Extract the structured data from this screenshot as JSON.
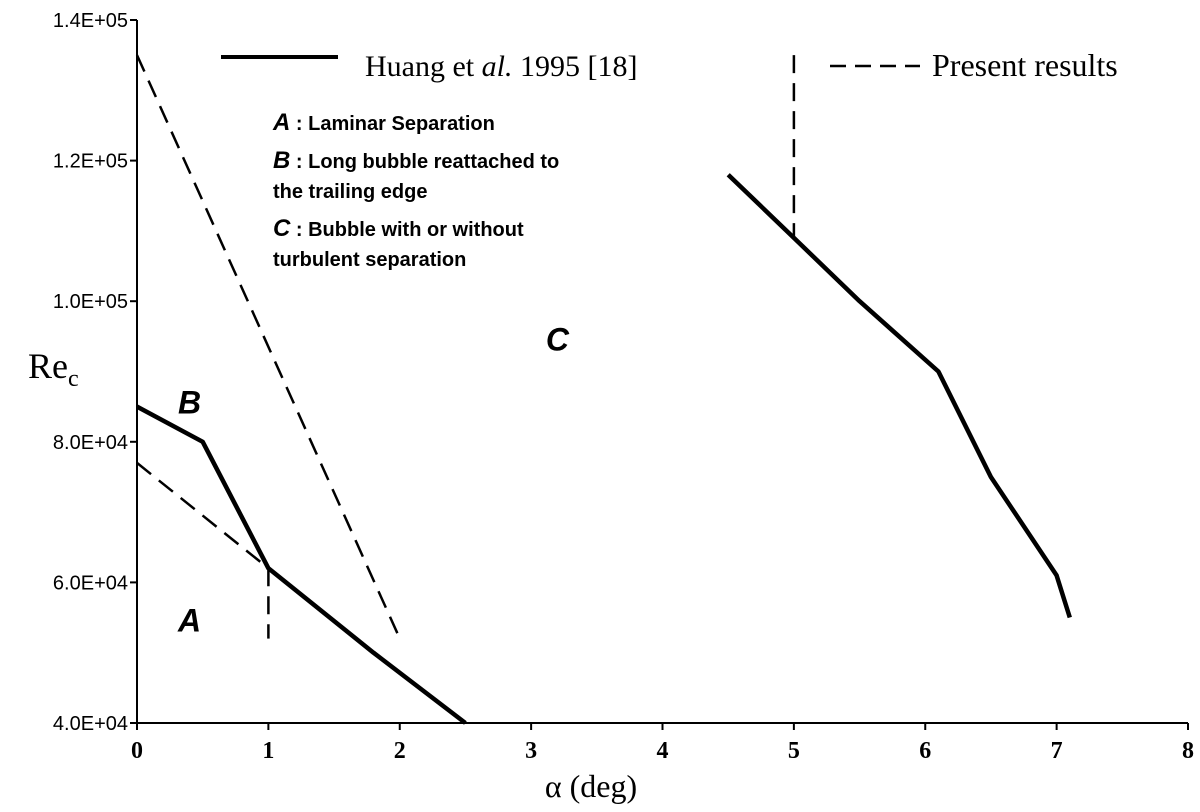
{
  "chart_data": {
    "type": "line",
    "title": "",
    "xlabel": "α (deg)",
    "ylabel_main": "Re",
    "ylabel_sub": "c",
    "xlim": [
      0,
      8
    ],
    "ylim": [
      40000,
      140000
    ],
    "x_ticks": [
      0,
      1,
      2,
      3,
      4,
      5,
      6,
      7,
      8
    ],
    "x_tick_labels": [
      "0",
      "1",
      "2",
      "3",
      "4",
      "5",
      "6",
      "7",
      "8"
    ],
    "y_ticks": [
      40000,
      60000,
      80000,
      100000,
      120000,
      140000
    ],
    "y_tick_labels": [
      "4.0E+04",
      "6.0E+04",
      "8.0E+04",
      "1.0E+05",
      "1.2E+05",
      "1.4E+05"
    ],
    "grid": false,
    "legend": {
      "placement": "top",
      "entries": [
        {
          "style": "solid",
          "label_pre": "Huang et ",
          "label_italic": "al.",
          "label_post": " 1995 [18]"
        },
        {
          "style": "dashed",
          "label": "Present results"
        }
      ]
    },
    "series": [
      {
        "name": "Huang et al. 1995 [18] - lower boundary",
        "style": "solid",
        "points": [
          [
            0,
            85000
          ],
          [
            0.5,
            80000
          ],
          [
            1.0,
            62000
          ],
          [
            1.8,
            50000
          ],
          [
            2.5,
            40000
          ]
        ]
      },
      {
        "name": "Huang et al. 1995 [18] - upper boundary",
        "style": "solid",
        "points": [
          [
            4.5,
            118000
          ],
          [
            5.0,
            109000
          ],
          [
            5.5,
            100000
          ],
          [
            6.1,
            90000
          ],
          [
            6.5,
            75000
          ],
          [
            7.0,
            61000
          ],
          [
            7.1,
            55000
          ]
        ]
      },
      {
        "name": "Present results - A/B boundary",
        "style": "dashed",
        "points": [
          [
            0,
            77000
          ],
          [
            1.0,
            62000
          ]
        ]
      },
      {
        "name": "Present results - B/C boundary",
        "style": "dashed",
        "points": [
          [
            0,
            135000
          ],
          [
            2.0,
            52000
          ]
        ]
      },
      {
        "name": "Present results - vertical at 1 deg",
        "style": "dashed",
        "points": [
          [
            1.0,
            62000
          ],
          [
            1.0,
            52000
          ]
        ]
      },
      {
        "name": "Present results - vertical at 5 deg",
        "style": "dashed",
        "points": [
          [
            5.0,
            135000
          ],
          [
            5.0,
            109000
          ]
        ]
      }
    ],
    "annotations": {
      "notes": [
        {
          "letter": "A",
          "text": " : Laminar Separation"
        },
        {
          "letter": "B",
          "text": " : Long bubble reattached to"
        },
        {
          "letter": "",
          "text": "the trailing edge"
        },
        {
          "letter": "C",
          "text": " : Bubble with or without"
        },
        {
          "letter": "",
          "text": "turbulent separation"
        }
      ],
      "regions": [
        {
          "label": "A",
          "x": 0.4,
          "y": 53000
        },
        {
          "label": "B",
          "x": 0.4,
          "y": 84000
        },
        {
          "label": "C",
          "x": 3.2,
          "y": 93000
        }
      ]
    }
  }
}
